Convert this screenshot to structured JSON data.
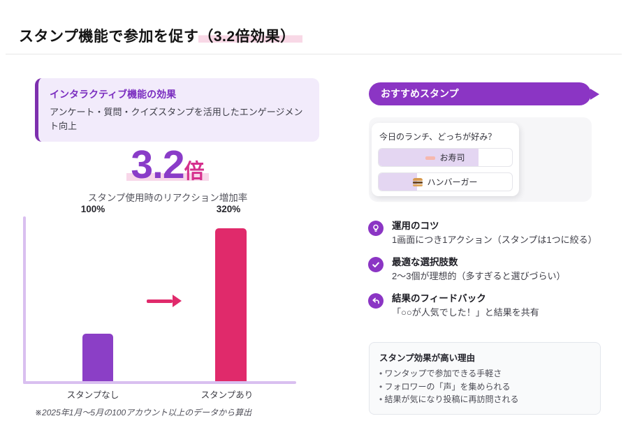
{
  "header": {
    "title_main": "スタンプ機能で参加を促す",
    "title_highlight": "（3.2倍効果）"
  },
  "left_panel": {
    "info_box": {
      "title": "インタラクティブ機能の効果",
      "body": "アンケート・質問・クイズスタンプを活用したエンゲージメント向上"
    },
    "stat": {
      "value": "3.2",
      "unit": "倍",
      "caption": "スタンプ使用時のリアクション増加率"
    },
    "footnote": "※2025年1月〜5月の100アカウント以上のデータから算出"
  },
  "chart_data": {
    "type": "bar",
    "title": "スタンプ使用時のリアクション増加率",
    "categories": [
      "スタンプなし",
      "スタンプあり"
    ],
    "values": [
      100,
      320
    ],
    "value_labels": [
      "100%",
      "320%"
    ],
    "unit": "%",
    "ylim": [
      0,
      345
    ],
    "grid": false,
    "legend": "none",
    "bar_colors": [
      "#8b3fc6",
      "#e02a6b"
    ],
    "axis_color": "#d9bff0",
    "annotation": "pink right-arrow between bars indicating increase"
  },
  "right_panel": {
    "banner": {
      "label": "おすすめスタンプ",
      "color": "#8b35c4"
    },
    "poll_example": {
      "question": "今日のランチ、どっちが好み？",
      "options": [
        {
          "icon": "sushi-icon",
          "label": "お寿司",
          "fill_percent": 75
        },
        {
          "icon": "hamburger-icon",
          "label": "ハンバーガー",
          "fill_percent": 29
        }
      ]
    },
    "tips": [
      {
        "icon": "lightbulb-icon",
        "title": "運用のコツ",
        "desc": "1画面につき1アクション（スタンプは1つに絞る）"
      },
      {
        "icon": "check-icon",
        "title": "最適な選択肢数",
        "desc": "2〜3個が理想的（多すぎると選びづらい）"
      },
      {
        "icon": "reply-arrow-icon",
        "title": "結果のフィードバック",
        "desc": "「○○が人気でした！」と結果を共有"
      }
    ],
    "reasons_box": {
      "title": "スタンプ効果が高い理由",
      "items": [
        "ワンタップで参加できる手軽さ",
        "フォロワーの「声」を集められる",
        "結果が気になり投稿に再訪問される"
      ]
    }
  },
  "colors": {
    "accent_purple": "#8b35c4",
    "accent_pink": "#e02a6b",
    "bar_purple": "#8b3fc6",
    "stat_purple": "#8a3cc8",
    "stat_unit_pink": "#d5308d",
    "axis_lavender": "#d9bff0",
    "title_highlight_pink": "#f8d8e6",
    "info_box_bg": "#f2ebfb",
    "info_box_border": "#7d2fae",
    "poll_fill_lavender": "#e4d6f2"
  }
}
